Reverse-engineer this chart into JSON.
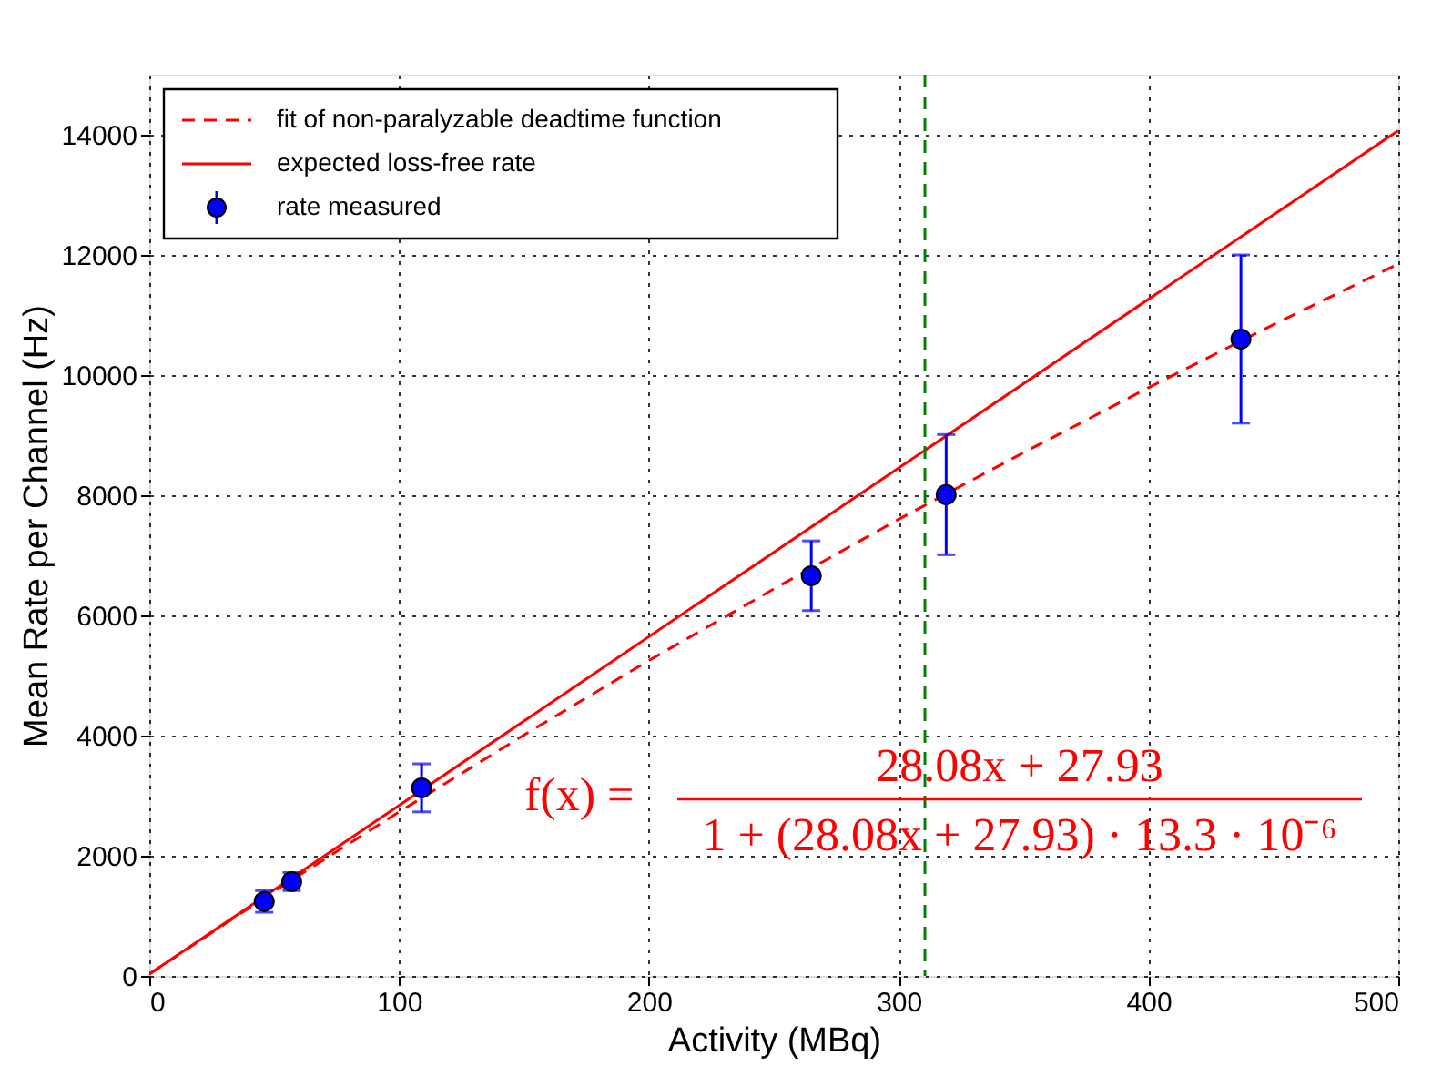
{
  "chart_data": {
    "type": "scatter",
    "xlabel": "Activity (MBq)",
    "ylabel": "Mean Rate per Channel (Hz)",
    "xlim": [
      0,
      500
    ],
    "xticks": [
      0,
      100,
      200,
      300,
      400,
      500
    ],
    "ylim": [
      0,
      15000
    ],
    "yticks": [
      0,
      2000,
      4000,
      6000,
      8000,
      10000,
      12000,
      14000
    ],
    "grid": true,
    "legend": "top left",
    "series": [
      {
        "name": "fit of non-paralyzable deadtime function",
        "type": "line",
        "line_style": "dashed",
        "color": "#ff0000",
        "x": [
          0,
          50,
          100,
          150,
          200,
          250,
          300,
          350,
          400,
          450,
          500
        ],
        "values": [
          30,
          1410,
          2730,
          4010,
          5250,
          6440,
          7600,
          8710,
          9790,
          10840,
          11850
        ]
      },
      {
        "name": "expected loss-free rate",
        "type": "line",
        "line_style": "solid",
        "color": "#ff0000",
        "x": [
          0,
          500
        ],
        "values": [
          30,
          14070
        ]
      },
      {
        "name": "rate measured",
        "marker": "circle",
        "color": "#0000ff",
        "x": [
          46,
          57,
          109,
          265,
          319,
          437
        ],
        "values": [
          1240,
          1570,
          3130,
          6660,
          8010,
          10600
        ],
        "errors": [
          180,
          150,
          400,
          580,
          1000,
          1400
        ]
      }
    ],
    "ref_lines": [
      {
        "axis": "x",
        "value": 310.5,
        "color": "#008000",
        "line_style": "dashed"
      }
    ],
    "annotations": [
      "f(x) =",
      "28.08x + 27.93",
      "1 + (28.08x + 27.93) · 13.3 · 10⁻⁶"
    ]
  }
}
